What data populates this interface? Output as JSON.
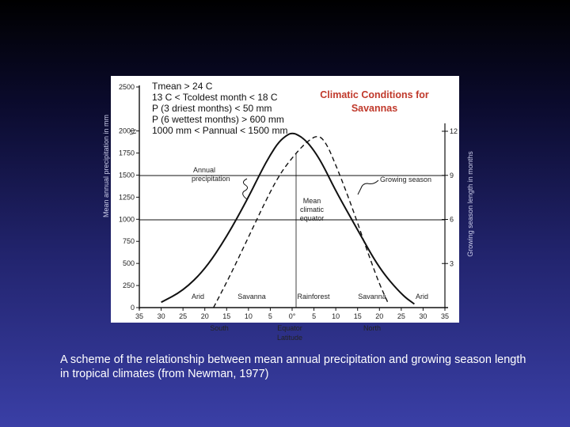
{
  "figure": {
    "criteria": [
      "Tmean > 24 C",
      "13 C < Tcoldest month < 18 C",
      "P (3 driest months) < 50 mm",
      "P (6 wettest months) > 600 mm",
      "1000 mm < Pannual < 1500 mm"
    ],
    "title_lines": [
      "Climatic Conditions for",
      "Savannas"
    ],
    "annotations": {
      "annual_precipitation": [
        "Annual",
        "precipitation"
      ],
      "growing_season": "Growing season",
      "mean_climatic_equator": [
        "Mean",
        "climatic",
        "equator"
      ]
    },
    "zone_labels": [
      "Arid",
      "Savanna",
      "Rainforest",
      "Savanna",
      "Arid"
    ],
    "direction_labels": {
      "south": "South",
      "equator": "Equator",
      "north": "North"
    },
    "xlabel": "Latitude",
    "ylabel_left": "Mean annual precipitation in mm",
    "ylabel_right": "Growing season length in months"
  },
  "chart_data": {
    "type": "line",
    "x_ticks": [
      "35",
      "30",
      "25",
      "20",
      "15",
      "10",
      "5",
      "0°",
      "5",
      "10",
      "15",
      "20",
      "25",
      "30",
      "35"
    ],
    "y_left_ticks": [
      "0",
      "250",
      "500",
      "750",
      "1000",
      "1250",
      "1500",
      "1750",
      "2000",
      "2500"
    ],
    "y_right_ticks": [
      "3",
      "6",
      "9",
      "12"
    ],
    "ylim_left": [
      0,
      2500
    ],
    "ylim_right": [
      0,
      12
    ],
    "reference_lines_mm": [
      1000,
      1500
    ],
    "series": [
      {
        "name": "Annual precipitation",
        "style": "solid",
        "x": [
          -30,
          -25,
          -20,
          -15,
          -10,
          -7,
          -5,
          -3,
          -1,
          0,
          1,
          3,
          5,
          7,
          10,
          15,
          20,
          25,
          28
        ],
        "y": [
          60,
          190,
          430,
          800,
          1250,
          1550,
          1730,
          1880,
          1960,
          1975,
          1965,
          1900,
          1780,
          1620,
          1320,
          880,
          440,
          150,
          40
        ]
      },
      {
        "name": "Growing season",
        "style": "dashed",
        "x": [
          -18,
          -14,
          -10,
          -6,
          -3,
          0,
          3,
          6,
          8,
          10,
          12,
          14,
          16,
          18,
          20,
          22
        ],
        "y": [
          0,
          2.3,
          4.8,
          7.3,
          9.0,
          10.2,
          11.2,
          11.8,
          11.1,
          9.7,
          8.2,
          6.6,
          4.9,
          3.2,
          1.6,
          0.3
        ]
      }
    ]
  },
  "caption": "A scheme of the relationship between mean annual precipitation and growing season length in tropical climates (from Newman, 1977)"
}
